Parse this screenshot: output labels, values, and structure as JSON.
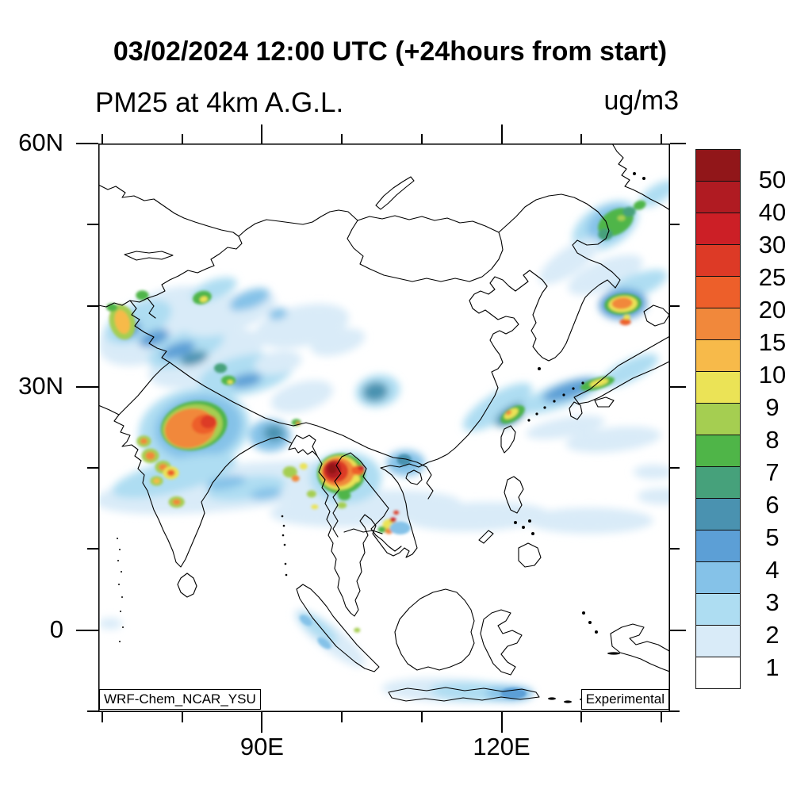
{
  "chart_data": {
    "type": "heatmap",
    "title": "03/02/2024 12:00 UTC (+24hours from start)",
    "variable_label": "PM25 at 4km A.G.L.",
    "units_label": "ug/m3",
    "model_label": "WRF-Chem_NCAR_YSU",
    "status_label": "Experimental",
    "projection": "lat-lon",
    "lon_range": [
      69.5,
      141.1
    ],
    "lat_range": [
      -10.1,
      60
    ],
    "x_axis": {
      "tick_interval_deg": 10,
      "minor_ticks_lon": [
        70,
        80,
        100,
        110,
        130,
        140
      ],
      "labeled_ticks": [
        {
          "label": "90E",
          "lon": 90
        },
        {
          "label": "120E",
          "lon": 120
        }
      ]
    },
    "y_axis": {
      "tick_interval_deg": 10,
      "minor_ticks_lat": [
        -10,
        10,
        20,
        40,
        50
      ],
      "labeled_ticks": [
        {
          "label": "60N",
          "lat": 60
        },
        {
          "label": "30N",
          "lat": 30
        },
        {
          "label": "0",
          "lat": 0
        }
      ]
    },
    "colorbar": {
      "levels": [
        1,
        2,
        3,
        4,
        5,
        6,
        7,
        8,
        9,
        10,
        15,
        20,
        25,
        30,
        40,
        50
      ],
      "colors_low_to_high": [
        "#ffffff",
        "#d9ebf8",
        "#aeddf2",
        "#85c2e8",
        "#5c9fd6",
        "#4a92b0",
        "#46a17b",
        "#4fb548",
        "#a5ce51",
        "#ebe356",
        "#f7ba4a",
        "#f1883b",
        "#ed5f2a",
        "#dd3a26",
        "#cc1f26",
        "#b01b22",
        "#911619"
      ]
    },
    "field_blobs": {
      "comment": "each blob: [lon, lat, rx_deg, ry_deg, rotation_deg, color_index]",
      "soft": [
        [
          77,
          37.5,
          8,
          4,
          -25,
          1
        ],
        [
          83,
          33.5,
          7.5,
          3,
          -18,
          1
        ],
        [
          74.5,
          38,
          4.5,
          2.2,
          -25,
          2
        ],
        [
          80.5,
          34.8,
          5,
          2,
          -20,
          2
        ],
        [
          86,
          39,
          6,
          2.2,
          -18,
          1
        ],
        [
          95,
          37.5,
          6,
          2.5,
          -12,
          1
        ],
        [
          99.5,
          35.5,
          3.5,
          1.5,
          -15,
          1
        ],
        [
          88.5,
          40.8,
          2.6,
          1.1,
          -20,
          3
        ],
        [
          84,
          42,
          3,
          1.2,
          -20,
          2
        ],
        [
          88,
          31.5,
          6,
          2.4,
          -12,
          2
        ],
        [
          95,
          28.8,
          4,
          1.8,
          -15,
          1
        ],
        [
          92,
          33,
          3,
          1.4,
          -10,
          1
        ],
        [
          81.5,
          24.8,
          7,
          5,
          -10,
          2
        ],
        [
          82,
          25,
          5.5,
          4,
          -10,
          3
        ],
        [
          86,
          17.6,
          17,
          2.8,
          -6,
          1
        ],
        [
          79,
          19,
          8,
          2,
          -14,
          2
        ],
        [
          88,
          17.5,
          5,
          1.4,
          -8,
          2
        ],
        [
          103,
          15,
          12,
          2.2,
          -3,
          1
        ],
        [
          117,
          14,
          9,
          1.8,
          -2,
          1
        ],
        [
          131,
          13.5,
          8,
          1.6,
          0,
          1
        ],
        [
          140,
          16.5,
          3,
          1,
          0,
          1
        ],
        [
          91,
          24,
          2.6,
          2,
          0,
          3
        ],
        [
          91.5,
          24.3,
          1.3,
          1,
          0,
          5
        ],
        [
          100.5,
          18.8,
          4.5,
          3.2,
          0,
          2
        ],
        [
          108,
          20.6,
          2.4,
          1.6,
          0,
          3
        ],
        [
          104.5,
          29.5,
          2.8,
          2,
          -10,
          2
        ],
        [
          104.2,
          29.4,
          1.6,
          1.2,
          -10,
          5
        ],
        [
          119.5,
          27.5,
          5,
          1.7,
          -32,
          2
        ],
        [
          121.3,
          26.6,
          2.4,
          1,
          -32,
          5
        ],
        [
          127.5,
          29,
          5.5,
          1.5,
          -20,
          2
        ],
        [
          128.5,
          29.6,
          3.5,
          1,
          -18,
          4
        ],
        [
          136,
          32,
          4,
          1.3,
          -26,
          2
        ],
        [
          128,
          25,
          5,
          1.2,
          -10,
          1
        ],
        [
          134,
          23.5,
          6,
          1.5,
          -6,
          1
        ],
        [
          133,
          49.8,
          4.5,
          2.6,
          -30,
          2
        ],
        [
          133.5,
          50.2,
          3,
          1.9,
          -30,
          3
        ],
        [
          128.5,
          45.5,
          4.5,
          1.6,
          -35,
          1
        ],
        [
          133,
          43.8,
          5,
          1.8,
          -22,
          1
        ],
        [
          137,
          42.5,
          4,
          1.4,
          -22,
          2
        ],
        [
          139.5,
          53.8,
          2.6,
          1.1,
          -32,
          2
        ],
        [
          135.2,
          40.2,
          3,
          1.9,
          -5,
          4
        ],
        [
          98.5,
          -1,
          5.5,
          1.5,
          38,
          1
        ],
        [
          97,
          0.3,
          3,
          1,
          38,
          2
        ],
        [
          113,
          -7.4,
          8,
          1.5,
          2,
          1
        ],
        [
          117,
          -7.6,
          6,
          1.2,
          2,
          2
        ],
        [
          121,
          -7.8,
          3,
          1,
          0,
          3
        ],
        [
          71,
          0.8,
          1.5,
          0.7,
          0,
          1
        ],
        [
          139,
          19.5,
          2.5,
          0.9,
          0,
          1
        ],
        [
          73.5,
          37,
          1.5,
          0.8,
          -25,
          4
        ],
        [
          76.5,
          36,
          2,
          0.9,
          -22,
          4
        ],
        [
          79.5,
          34.5,
          2.2,
          0.9,
          -20,
          4
        ],
        [
          81.5,
          33.5,
          1.8,
          0.8,
          -18,
          5
        ],
        [
          88,
          30.8,
          2,
          0.8,
          -12,
          4
        ],
        [
          85.5,
          18.2,
          2.5,
          0.8,
          -10,
          3
        ],
        [
          90.5,
          16.8,
          2,
          0.7,
          -8,
          3
        ],
        [
          92,
          39,
          1.2,
          0.7,
          -15,
          3
        ],
        [
          87.5,
          40.3,
          1.6,
          0.8,
          -20,
          3
        ]
      ],
      "crisp": [
        [
          81.5,
          25.2,
          4.2,
          3,
          -12,
          7
        ],
        [
          81.3,
          25.1,
          3.8,
          2.7,
          -12,
          8
        ],
        [
          81,
          24.9,
          3.2,
          2.4,
          -12,
          11
        ],
        [
          82.8,
          25.4,
          1.6,
          1.2,
          -10,
          12
        ],
        [
          83.3,
          25.7,
          1,
          0.8,
          -10,
          13
        ],
        [
          72.5,
          38,
          1.6,
          2.2,
          -15,
          8
        ],
        [
          72.5,
          38,
          0.9,
          1.5,
          -15,
          10
        ],
        [
          75,
          41.3,
          0.8,
          0.6,
          0,
          7
        ],
        [
          82.5,
          41,
          1.2,
          0.8,
          -15,
          7
        ],
        [
          82.7,
          40.8,
          0.5,
          0.35,
          -15,
          9
        ],
        [
          71.2,
          39.8,
          0.7,
          0.5,
          0,
          7
        ],
        [
          84.8,
          32.3,
          0.8,
          0.6,
          0,
          6
        ],
        [
          85.8,
          30.8,
          0.9,
          0.6,
          0,
          7
        ],
        [
          86,
          30.6,
          0.35,
          0.25,
          0,
          9
        ],
        [
          76,
          21.5,
          1.1,
          0.9,
          0,
          8
        ],
        [
          76,
          21.5,
          0.6,
          0.5,
          0,
          11
        ],
        [
          77.6,
          20.1,
          1,
          0.8,
          0,
          8
        ],
        [
          77.6,
          20.1,
          0.55,
          0.4,
          0,
          11
        ],
        [
          78.6,
          19.4,
          1,
          0.8,
          0,
          9
        ],
        [
          78.6,
          19.4,
          0.5,
          0.4,
          0,
          12
        ],
        [
          76.8,
          18.4,
          0.8,
          0.6,
          0,
          8
        ],
        [
          76.8,
          18.4,
          0.4,
          0.3,
          0,
          10
        ],
        [
          79.3,
          15.8,
          1,
          0.7,
          0,
          8
        ],
        [
          79.3,
          15.8,
          0.5,
          0.35,
          0,
          11
        ],
        [
          75.2,
          23.3,
          0.9,
          0.7,
          0,
          8
        ],
        [
          75.2,
          23.3,
          0.45,
          0.35,
          0,
          11
        ],
        [
          94.3,
          25.6,
          0.6,
          0.45,
          0,
          7
        ],
        [
          94.5,
          25.5,
          0.25,
          0.2,
          0,
          11
        ],
        [
          93.5,
          19.5,
          0.9,
          0.7,
          0,
          8
        ],
        [
          94.2,
          18.7,
          0.5,
          0.4,
          0,
          11
        ],
        [
          95.2,
          20.2,
          0.5,
          0.4,
          0,
          9
        ],
        [
          96.2,
          16.8,
          0.6,
          0.45,
          0,
          8
        ],
        [
          96.6,
          15.2,
          0.45,
          0.3,
          0,
          9
        ],
        [
          99.9,
          19.3,
          3,
          2.5,
          0,
          7
        ],
        [
          99.7,
          19.4,
          2.5,
          2.1,
          0,
          9
        ],
        [
          99.5,
          19.5,
          2.1,
          1.8,
          0,
          11
        ],
        [
          99.2,
          19.6,
          1.6,
          1.4,
          0,
          13
        ],
        [
          98.9,
          19.8,
          1,
          1.1,
          0,
          15
        ],
        [
          98.8,
          19.9,
          0.55,
          0.6,
          0,
          16
        ],
        [
          102,
          19.7,
          0.8,
          0.6,
          0,
          12
        ],
        [
          102.4,
          20,
          0.4,
          0.3,
          0,
          14
        ],
        [
          101.8,
          18.6,
          0.5,
          0.4,
          0,
          9
        ],
        [
          100.3,
          16.6,
          0.8,
          0.6,
          0,
          7
        ],
        [
          100,
          15.4,
          0.6,
          0.4,
          0,
          8
        ],
        [
          107.8,
          21,
          0.9,
          0.7,
          0,
          5
        ],
        [
          106,
          13,
          0.9,
          0.7,
          0,
          9
        ],
        [
          106.4,
          13.6,
          0.4,
          0.3,
          0,
          14
        ],
        [
          105.9,
          12.2,
          0.5,
          0.35,
          0,
          11
        ],
        [
          105,
          12.4,
          0.5,
          0.4,
          0,
          7
        ],
        [
          106.8,
          14.5,
          0.35,
          0.25,
          0,
          13
        ],
        [
          107.3,
          12.6,
          1.3,
          0.8,
          0,
          3
        ],
        [
          121.4,
          26.6,
          1.7,
          0.8,
          -32,
          7
        ],
        [
          121.2,
          26.7,
          1,
          0.5,
          -32,
          9
        ],
        [
          120.9,
          26.8,
          0.4,
          0.25,
          -32,
          11
        ],
        [
          132,
          30.4,
          2.2,
          0.7,
          -15,
          7
        ],
        [
          132.2,
          30.5,
          1.2,
          0.4,
          -15,
          9
        ],
        [
          134.3,
          50.3,
          2.4,
          1.5,
          -30,
          7
        ],
        [
          133,
          48.8,
          0.9,
          0.7,
          0,
          6
        ],
        [
          136,
          51.6,
          0.8,
          0.6,
          0,
          6
        ],
        [
          137.3,
          52.4,
          0.8,
          0.55,
          -20,
          7
        ],
        [
          135,
          50.8,
          0.5,
          0.35,
          0,
          8
        ],
        [
          135.2,
          40.2,
          2.3,
          1.3,
          -5,
          7
        ],
        [
          135.2,
          40.2,
          1.8,
          1,
          -5,
          9
        ],
        [
          135.1,
          40.3,
          1.3,
          0.7,
          -5,
          11
        ],
        [
          135.5,
          38,
          0.7,
          0.4,
          0,
          12
        ],
        [
          135.7,
          38.6,
          0.45,
          0.3,
          0,
          9
        ],
        [
          101.9,
          0,
          0.4,
          0.3,
          0,
          8
        ],
        [
          95.5,
          1.2,
          0.9,
          0.5,
          38,
          3
        ],
        [
          97.8,
          -1.6,
          1,
          0.5,
          38,
          3
        ],
        [
          121.5,
          -7.8,
          1.6,
          0.7,
          0,
          4
        ]
      ]
    }
  }
}
